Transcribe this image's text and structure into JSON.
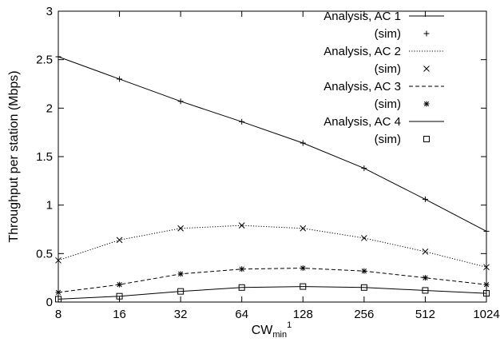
{
  "chart_data": {
    "type": "line",
    "title": "",
    "xlabel": {
      "base": "CW",
      "subscript": "min",
      "superscript": "1"
    },
    "ylabel": "Throughput per station (Mbps)",
    "x_scale": "log2",
    "x": [
      8,
      16,
      32,
      64,
      128,
      256,
      512,
      1024
    ],
    "x_tick_labels": [
      "8",
      "16",
      "32",
      "64",
      "128",
      "256",
      "512",
      "1024"
    ],
    "ylim": [
      0,
      3
    ],
    "y_ticks": [
      0,
      0.5,
      1,
      1.5,
      2,
      2.5,
      3
    ],
    "y_tick_labels": [
      "0",
      "0.5",
      "1",
      "1.5",
      "2",
      "2.5",
      "3"
    ],
    "grid": false,
    "legend_position": "top-right",
    "series": [
      {
        "name": "Analysis, AC 1",
        "sim_name": "(sim)",
        "line_style": "solid",
        "marker": "plus",
        "values": [
          2.53,
          2.3,
          2.07,
          1.86,
          1.64,
          1.38,
          1.06,
          0.73
        ]
      },
      {
        "name": "Analysis, AC 2",
        "sim_name": "(sim)",
        "line_style": "dotted",
        "marker": "cross",
        "values": [
          0.43,
          0.64,
          0.76,
          0.79,
          0.76,
          0.66,
          0.52,
          0.36
        ]
      },
      {
        "name": "Analysis, AC 3",
        "sim_name": "(sim)",
        "line_style": "dashed",
        "marker": "asterisk",
        "values": [
          0.1,
          0.18,
          0.29,
          0.34,
          0.35,
          0.32,
          0.25,
          0.18
        ]
      },
      {
        "name": "Analysis, AC 4",
        "sim_name": "(sim)",
        "line_style": "solid",
        "marker": "square",
        "values": [
          0.03,
          0.06,
          0.11,
          0.15,
          0.16,
          0.15,
          0.12,
          0.09
        ]
      }
    ]
  }
}
